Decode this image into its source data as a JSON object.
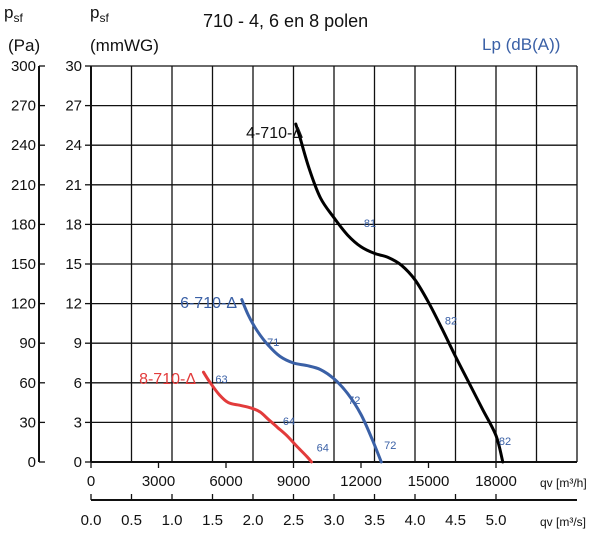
{
  "chart_data": {
    "type": "line",
    "title": "710 - 4, 6 en 8 polen",
    "left_axis_outer": {
      "symbol": "p",
      "subscript": "sf",
      "unit": "(Pa)",
      "ticks": [
        "0",
        "30",
        "60",
        "90",
        "120",
        "150",
        "180",
        "210",
        "240",
        "270",
        "300"
      ]
    },
    "left_axis_inner": {
      "symbol": "p",
      "subscript": "sf",
      "unit": "(mmWG)",
      "ticks": [
        "0",
        "3",
        "6",
        "9",
        "12",
        "15",
        "18",
        "21",
        "24",
        "27",
        "30"
      ]
    },
    "right_axis_label": "Lp (dB(A))",
    "x_axis_m3h": {
      "label": "qv [m³/h]",
      "ticks": [
        "0",
        "3000",
        "6000",
        "9000",
        "12000",
        "15000",
        "18000"
      ]
    },
    "x_axis_m3s": {
      "label": "qv [m³/s]",
      "ticks": [
        "0.0",
        "0.5",
        "1.0",
        "1.5",
        "2.0",
        "2.5",
        "3.0",
        "3.5",
        "4.0",
        "4.5",
        "5.0"
      ]
    },
    "xlim_m3h": [
      0,
      21600
    ],
    "ylim_pa": [
      0,
      300
    ],
    "grid": true,
    "series": [
      {
        "name": "4-710-Δ",
        "color": "#000000",
        "x": [
          9100,
          9300,
          9700,
          10200,
          10800,
          11400,
          12000,
          12600,
          13200,
          13800,
          14400,
          15000,
          15600,
          16200,
          16800,
          17400,
          18000,
          18300
        ],
        "y": [
          256,
          245,
          222,
          200,
          185,
          172,
          163,
          158,
          155,
          149,
          138,
          121,
          101,
          80,
          60,
          40,
          20,
          0
        ],
        "sound_labels": [
          {
            "text": "81",
            "x": 12400,
            "y": 178
          },
          {
            "text": "82",
            "x": 16000,
            "y": 104
          },
          {
            "text": "82",
            "x": 18400,
            "y": 13
          }
        ]
      },
      {
        "name": "6-710-Δ",
        "color": "#3a60a6",
        "x": [
          6700,
          7000,
          7400,
          7900,
          8400,
          9000,
          9600,
          10200,
          10800,
          11400,
          12000,
          12500,
          12900
        ],
        "y": [
          123,
          111,
          99,
          88,
          80,
          75,
          73,
          70,
          63,
          52,
          36,
          17,
          0
        ],
        "sound_labels": [
          {
            "text": "71",
            "x": 8100,
            "y": 88
          },
          {
            "text": "72",
            "x": 11700,
            "y": 44
          },
          {
            "text": "72",
            "x": 13300,
            "y": 10
          }
        ]
      },
      {
        "name": "8-710-Δ",
        "color": "#e23b3b",
        "x": [
          5000,
          5300,
          5700,
          6100,
          6600,
          7100,
          7500,
          7900,
          8300,
          8700,
          9200,
          9600,
          9800
        ],
        "y": [
          68,
          60,
          51,
          45,
          43,
          41,
          38,
          32,
          26,
          20,
          11,
          4,
          0
        ],
        "sound_labels": [
          {
            "text": "63",
            "x": 5800,
            "y": 60
          },
          {
            "text": "64",
            "x": 8800,
            "y": 28
          },
          {
            "text": "64",
            "x": 10300,
            "y": 8
          }
        ]
      }
    ]
  }
}
